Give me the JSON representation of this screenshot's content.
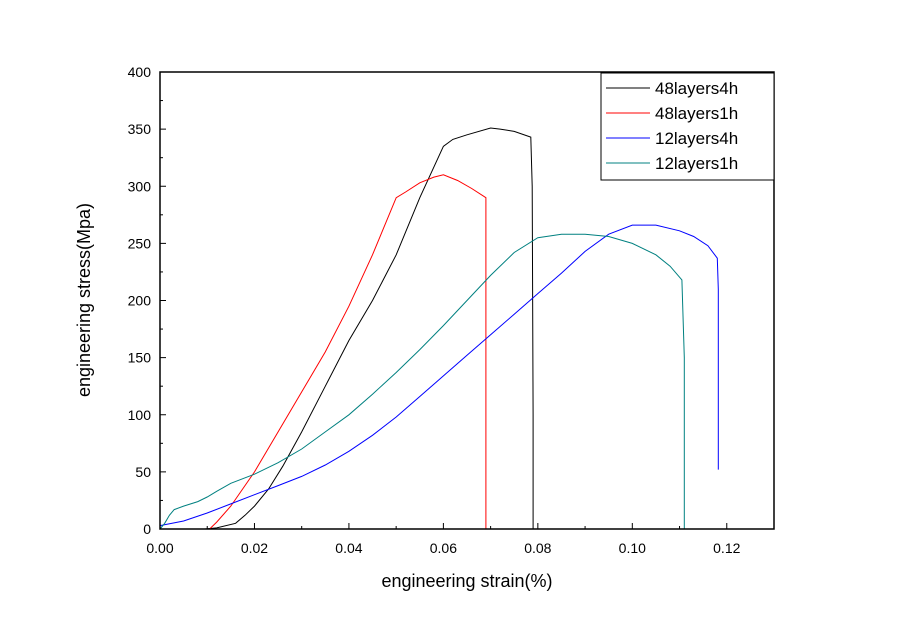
{
  "chart_data": {
    "type": "line",
    "title": "",
    "xlabel": "engineering strain(%)",
    "ylabel": "engineering stress(Mpa)",
    "xlim": [
      0.0,
      0.13
    ],
    "ylim": [
      0,
      400
    ],
    "xticks": [
      0.0,
      0.02,
      0.04,
      0.06,
      0.08,
      0.1,
      0.12
    ],
    "xtick_labels": [
      "0.00",
      "0.02",
      "0.04",
      "0.06",
      "0.08",
      "0.10",
      "0.12"
    ],
    "yticks": [
      0,
      50,
      100,
      150,
      200,
      250,
      300,
      350,
      400
    ],
    "ytick_labels": [
      "0",
      "50",
      "100",
      "150",
      "200",
      "250",
      "300",
      "350",
      "400"
    ],
    "grid": false,
    "legend_position": "top-right",
    "series": [
      {
        "name": "48layers4h",
        "color": "#000000",
        "x": [
          0.0095,
          0.012,
          0.016,
          0.018,
          0.02,
          0.023,
          0.026,
          0.03,
          0.035,
          0.04,
          0.045,
          0.05,
          0.055,
          0.06,
          0.062,
          0.065,
          0.07,
          0.072,
          0.075,
          0.0785,
          0.0788,
          0.079,
          0.079
        ],
        "y": [
          0,
          1,
          5,
          12,
          20,
          35,
          55,
          85,
          125,
          165,
          200,
          240,
          290,
          335,
          341,
          345,
          351,
          350,
          348,
          343,
          300,
          100,
          0
        ]
      },
      {
        "name": "48layers1h",
        "color": "#ff0000",
        "x": [
          0.0105,
          0.012,
          0.015,
          0.02,
          0.025,
          0.03,
          0.035,
          0.04,
          0.045,
          0.05,
          0.052,
          0.055,
          0.058,
          0.06,
          0.063,
          0.066,
          0.069,
          0.069,
          0.069
        ],
        "y": [
          0,
          6,
          20,
          50,
          85,
          120,
          155,
          195,
          240,
          290,
          295,
          303,
          308,
          310,
          305,
          298,
          290,
          100,
          0
        ]
      },
      {
        "name": "12layers4h",
        "color": "#0000ff",
        "x": [
          0.0,
          0.005,
          0.01,
          0.015,
          0.02,
          0.025,
          0.03,
          0.035,
          0.04,
          0.045,
          0.05,
          0.055,
          0.06,
          0.065,
          0.07,
          0.075,
          0.08,
          0.085,
          0.09,
          0.095,
          0.1,
          0.105,
          0.11,
          0.113,
          0.116,
          0.118,
          0.1182,
          0.1182,
          0.1182
        ],
        "y": [
          3,
          7,
          14,
          22,
          30,
          38,
          46,
          56,
          68,
          82,
          98,
          116,
          134,
          152,
          170,
          188,
          206,
          224,
          243,
          258,
          266,
          266,
          261,
          256,
          248,
          237,
          210,
          140,
          52
        ]
      },
      {
        "name": "12layers1h",
        "color": "#008080",
        "x": [
          0.0,
          0.001,
          0.002,
          0.003,
          0.005,
          0.008,
          0.01,
          0.012,
          0.015,
          0.02,
          0.025,
          0.03,
          0.035,
          0.04,
          0.045,
          0.05,
          0.055,
          0.06,
          0.065,
          0.07,
          0.075,
          0.08,
          0.085,
          0.09,
          0.095,
          0.1,
          0.105,
          0.108,
          0.1105,
          0.111,
          0.111,
          0.111
        ],
        "y": [
          0,
          5,
          12,
          17,
          20,
          24,
          28,
          33,
          40,
          48,
          58,
          70,
          85,
          100,
          118,
          137,
          157,
          178,
          200,
          222,
          242,
          255,
          258,
          258,
          256,
          250,
          240,
          230,
          218,
          150,
          60,
          0
        ]
      }
    ]
  }
}
